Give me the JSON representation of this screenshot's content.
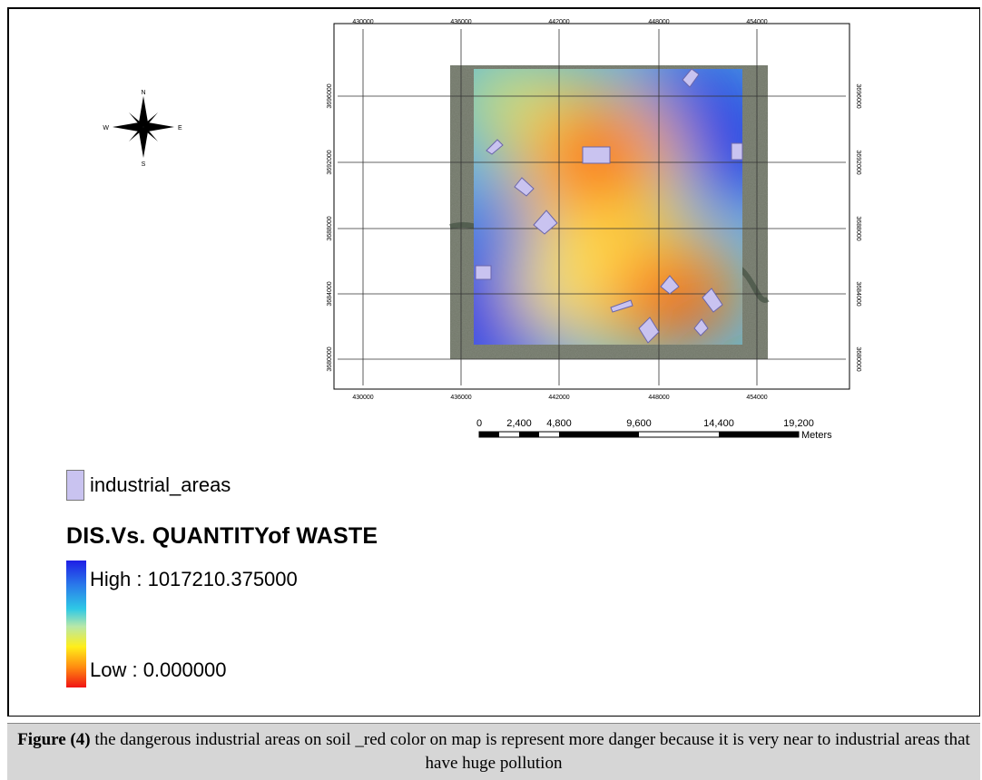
{
  "map": {
    "x_ticks": [
      "430000",
      "436000",
      "442000",
      "448000",
      "454000"
    ],
    "y_ticks": [
      "3696000",
      "3692000",
      "3688000",
      "3684000",
      "3680000"
    ],
    "scale_bar": {
      "labels": [
        "0",
        "2,400",
        "4,800",
        "9,600",
        "14,400",
        "19,200"
      ],
      "unit": "Meters"
    },
    "north_arrow": {
      "n": "N",
      "s": "S",
      "e": "E",
      "w": "W"
    }
  },
  "legend": {
    "industrial_label": "industrial_areas",
    "title": "DIS.Vs. QUANTITYof WASTE",
    "high": "High : 1017210.375000",
    "low": "Low : 0.000000"
  },
  "colors": {
    "industrial_fill": "#c9c3f0",
    "ramp_high": "#1e1ee6",
    "ramp_low": "#f01414"
  },
  "caption": {
    "label": "Figure (4)",
    "text": " the dangerous industrial areas on soil _red color on map  is represent more danger because it is very near to industrial areas that have huge pollution"
  }
}
